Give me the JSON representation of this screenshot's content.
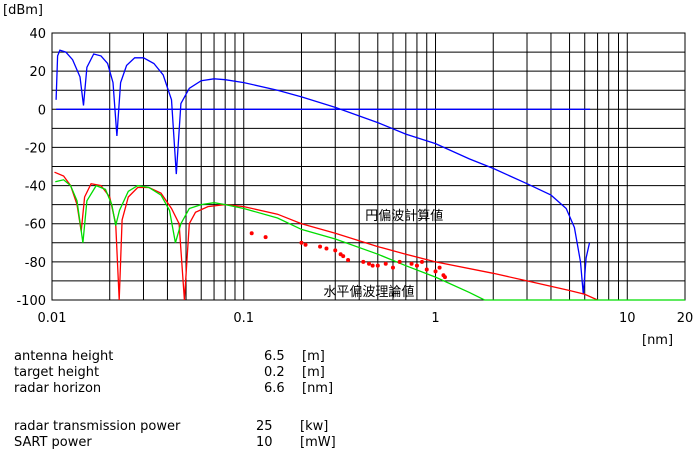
{
  "chart_data": {
    "type": "line",
    "yunit": "[dBm]",
    "xunit": "[nm]",
    "xscale": "log",
    "xlim": [
      0.01,
      20
    ],
    "ylim": [
      -100,
      40
    ],
    "grid": true,
    "xticks": [
      {
        "v": 0.01,
        "label": "0.01"
      },
      {
        "v": 0.1,
        "label": "0.1"
      },
      {
        "v": 1,
        "label": "1"
      },
      {
        "v": 10,
        "label": "10"
      },
      {
        "v": 20,
        "label": "20"
      }
    ],
    "yticks": [
      40,
      20,
      0,
      -20,
      -40,
      -60,
      -80,
      -100
    ],
    "series": [
      {
        "color": "#0000ff",
        "points": [
          [
            0.0105,
            5
          ],
          [
            0.0107,
            28
          ],
          [
            0.011,
            31
          ],
          [
            0.0118,
            30
          ],
          [
            0.0128,
            26
          ],
          [
            0.014,
            17
          ],
          [
            0.0146,
            2
          ],
          [
            0.0152,
            22
          ],
          [
            0.0165,
            29
          ],
          [
            0.018,
            28
          ],
          [
            0.0195,
            24
          ],
          [
            0.0208,
            14
          ],
          [
            0.0218,
            -14
          ],
          [
            0.0228,
            14
          ],
          [
            0.0245,
            23
          ],
          [
            0.027,
            27
          ],
          [
            0.03,
            27
          ],
          [
            0.034,
            24
          ],
          [
            0.038,
            18
          ],
          [
            0.042,
            5
          ],
          [
            0.0445,
            -34
          ],
          [
            0.047,
            3
          ],
          [
            0.052,
            11
          ],
          [
            0.06,
            15
          ],
          [
            0.07,
            16
          ],
          [
            0.08,
            15.5
          ],
          [
            0.1,
            14
          ],
          [
            0.15,
            10
          ],
          [
            0.2,
            6.5
          ],
          [
            0.3,
            1
          ],
          [
            0.5,
            -7
          ],
          [
            0.7,
            -13
          ],
          [
            1.0,
            -18
          ],
          [
            1.5,
            -26
          ],
          [
            2,
            -31
          ],
          [
            3,
            -39
          ],
          [
            4,
            -45
          ],
          [
            4.8,
            -52
          ],
          [
            5.3,
            -62
          ],
          [
            5.7,
            -80
          ],
          [
            5.9,
            -97
          ],
          [
            6.1,
            -78
          ],
          [
            6.35,
            -70
          ]
        ]
      },
      {
        "color": "#0000ff",
        "points": [
          [
            0.0105,
            0
          ],
          [
            6.4,
            0
          ]
        ]
      },
      {
        "color": "#ff0000",
        "points": [
          [
            0.0103,
            -33
          ],
          [
            0.0115,
            -35
          ],
          [
            0.0125,
            -40
          ],
          [
            0.0135,
            -50
          ],
          [
            0.0142,
            -64
          ],
          [
            0.0148,
            -46
          ],
          [
            0.016,
            -39
          ],
          [
            0.018,
            -40
          ],
          [
            0.02,
            -46
          ],
          [
            0.0215,
            -60
          ],
          [
            0.0224,
            -100
          ],
          [
            0.0232,
            -58
          ],
          [
            0.025,
            -46
          ],
          [
            0.028,
            -41
          ],
          [
            0.032,
            -41
          ],
          [
            0.037,
            -44
          ],
          [
            0.042,
            -52
          ],
          [
            0.046,
            -60
          ],
          [
            0.049,
            -100
          ],
          [
            0.052,
            -60
          ],
          [
            0.056,
            -54
          ],
          [
            0.065,
            -51
          ],
          [
            0.08,
            -50
          ],
          [
            0.1,
            -51
          ],
          [
            0.15,
            -55
          ],
          [
            0.2,
            -60
          ],
          [
            0.3,
            -65
          ],
          [
            0.5,
            -72
          ],
          [
            0.7,
            -76
          ],
          [
            1,
            -80
          ],
          [
            2,
            -86
          ],
          [
            3,
            -90
          ],
          [
            5,
            -95
          ],
          [
            6,
            -97
          ],
          [
            7,
            -100
          ]
        ]
      },
      {
        "color": "#00dd00",
        "points": [
          [
            0.0104,
            -38
          ],
          [
            0.0115,
            -37
          ],
          [
            0.0125,
            -40
          ],
          [
            0.0135,
            -48
          ],
          [
            0.0145,
            -70
          ],
          [
            0.0152,
            -48
          ],
          [
            0.017,
            -40
          ],
          [
            0.019,
            -42
          ],
          [
            0.0205,
            -50
          ],
          [
            0.0215,
            -61
          ],
          [
            0.0225,
            -53
          ],
          [
            0.025,
            -43
          ],
          [
            0.028,
            -40
          ],
          [
            0.032,
            -41
          ],
          [
            0.037,
            -45
          ],
          [
            0.041,
            -53
          ],
          [
            0.044,
            -70
          ],
          [
            0.047,
            -60
          ],
          [
            0.052,
            -52
          ],
          [
            0.06,
            -50
          ],
          [
            0.07,
            -49
          ],
          [
            0.08,
            -50
          ],
          [
            0.1,
            -52
          ],
          [
            0.15,
            -57
          ],
          [
            0.2,
            -63
          ],
          [
            0.3,
            -68
          ],
          [
            0.5,
            -76
          ],
          [
            0.7,
            -82
          ],
          [
            1,
            -88
          ],
          [
            1.5,
            -96
          ],
          [
            1.8,
            -100
          ],
          [
            20,
            -100
          ]
        ]
      }
    ],
    "measurements": [
      [
        0.11,
        -65
      ],
      [
        0.13,
        -67
      ],
      [
        0.2,
        -70
      ],
      [
        0.21,
        -71
      ],
      [
        0.25,
        -72
      ],
      [
        0.27,
        -73
      ],
      [
        0.3,
        -74
      ],
      [
        0.32,
        -76
      ],
      [
        0.33,
        -77
      ],
      [
        0.35,
        -79
      ],
      [
        0.42,
        -80
      ],
      [
        0.45,
        -81
      ],
      [
        0.47,
        -82
      ],
      [
        0.5,
        -82
      ],
      [
        0.55,
        -81
      ],
      [
        0.6,
        -83
      ],
      [
        0.65,
        -80
      ],
      [
        0.75,
        -81
      ],
      [
        0.8,
        -82
      ],
      [
        0.85,
        -80
      ],
      [
        0.9,
        -84
      ],
      [
        1.0,
        -85
      ],
      [
        1.05,
        -83
      ],
      [
        1.1,
        -87
      ],
      [
        1.12,
        -88
      ]
    ],
    "annotations": [
      {
        "text": "円偏波計算値",
        "x": 0.43,
        "y": -58
      },
      {
        "text": "水平偏波理論値",
        "x": 0.26,
        "y": -98
      }
    ]
  },
  "params": {
    "rows": [
      {
        "label": "antenna height",
        "value": "6.5",
        "unit": "[m]"
      },
      {
        "label": "target height",
        "value": "0.2",
        "unit": "[m]"
      },
      {
        "label": "radar horizon",
        "value": "6.6",
        "unit": "[nm]"
      }
    ],
    "rows2": [
      {
        "label": "radar transmission power",
        "value": "25",
        "unit": "[kw]"
      },
      {
        "label": "SART power",
        "value": "10",
        "unit": "[mW]"
      }
    ]
  }
}
